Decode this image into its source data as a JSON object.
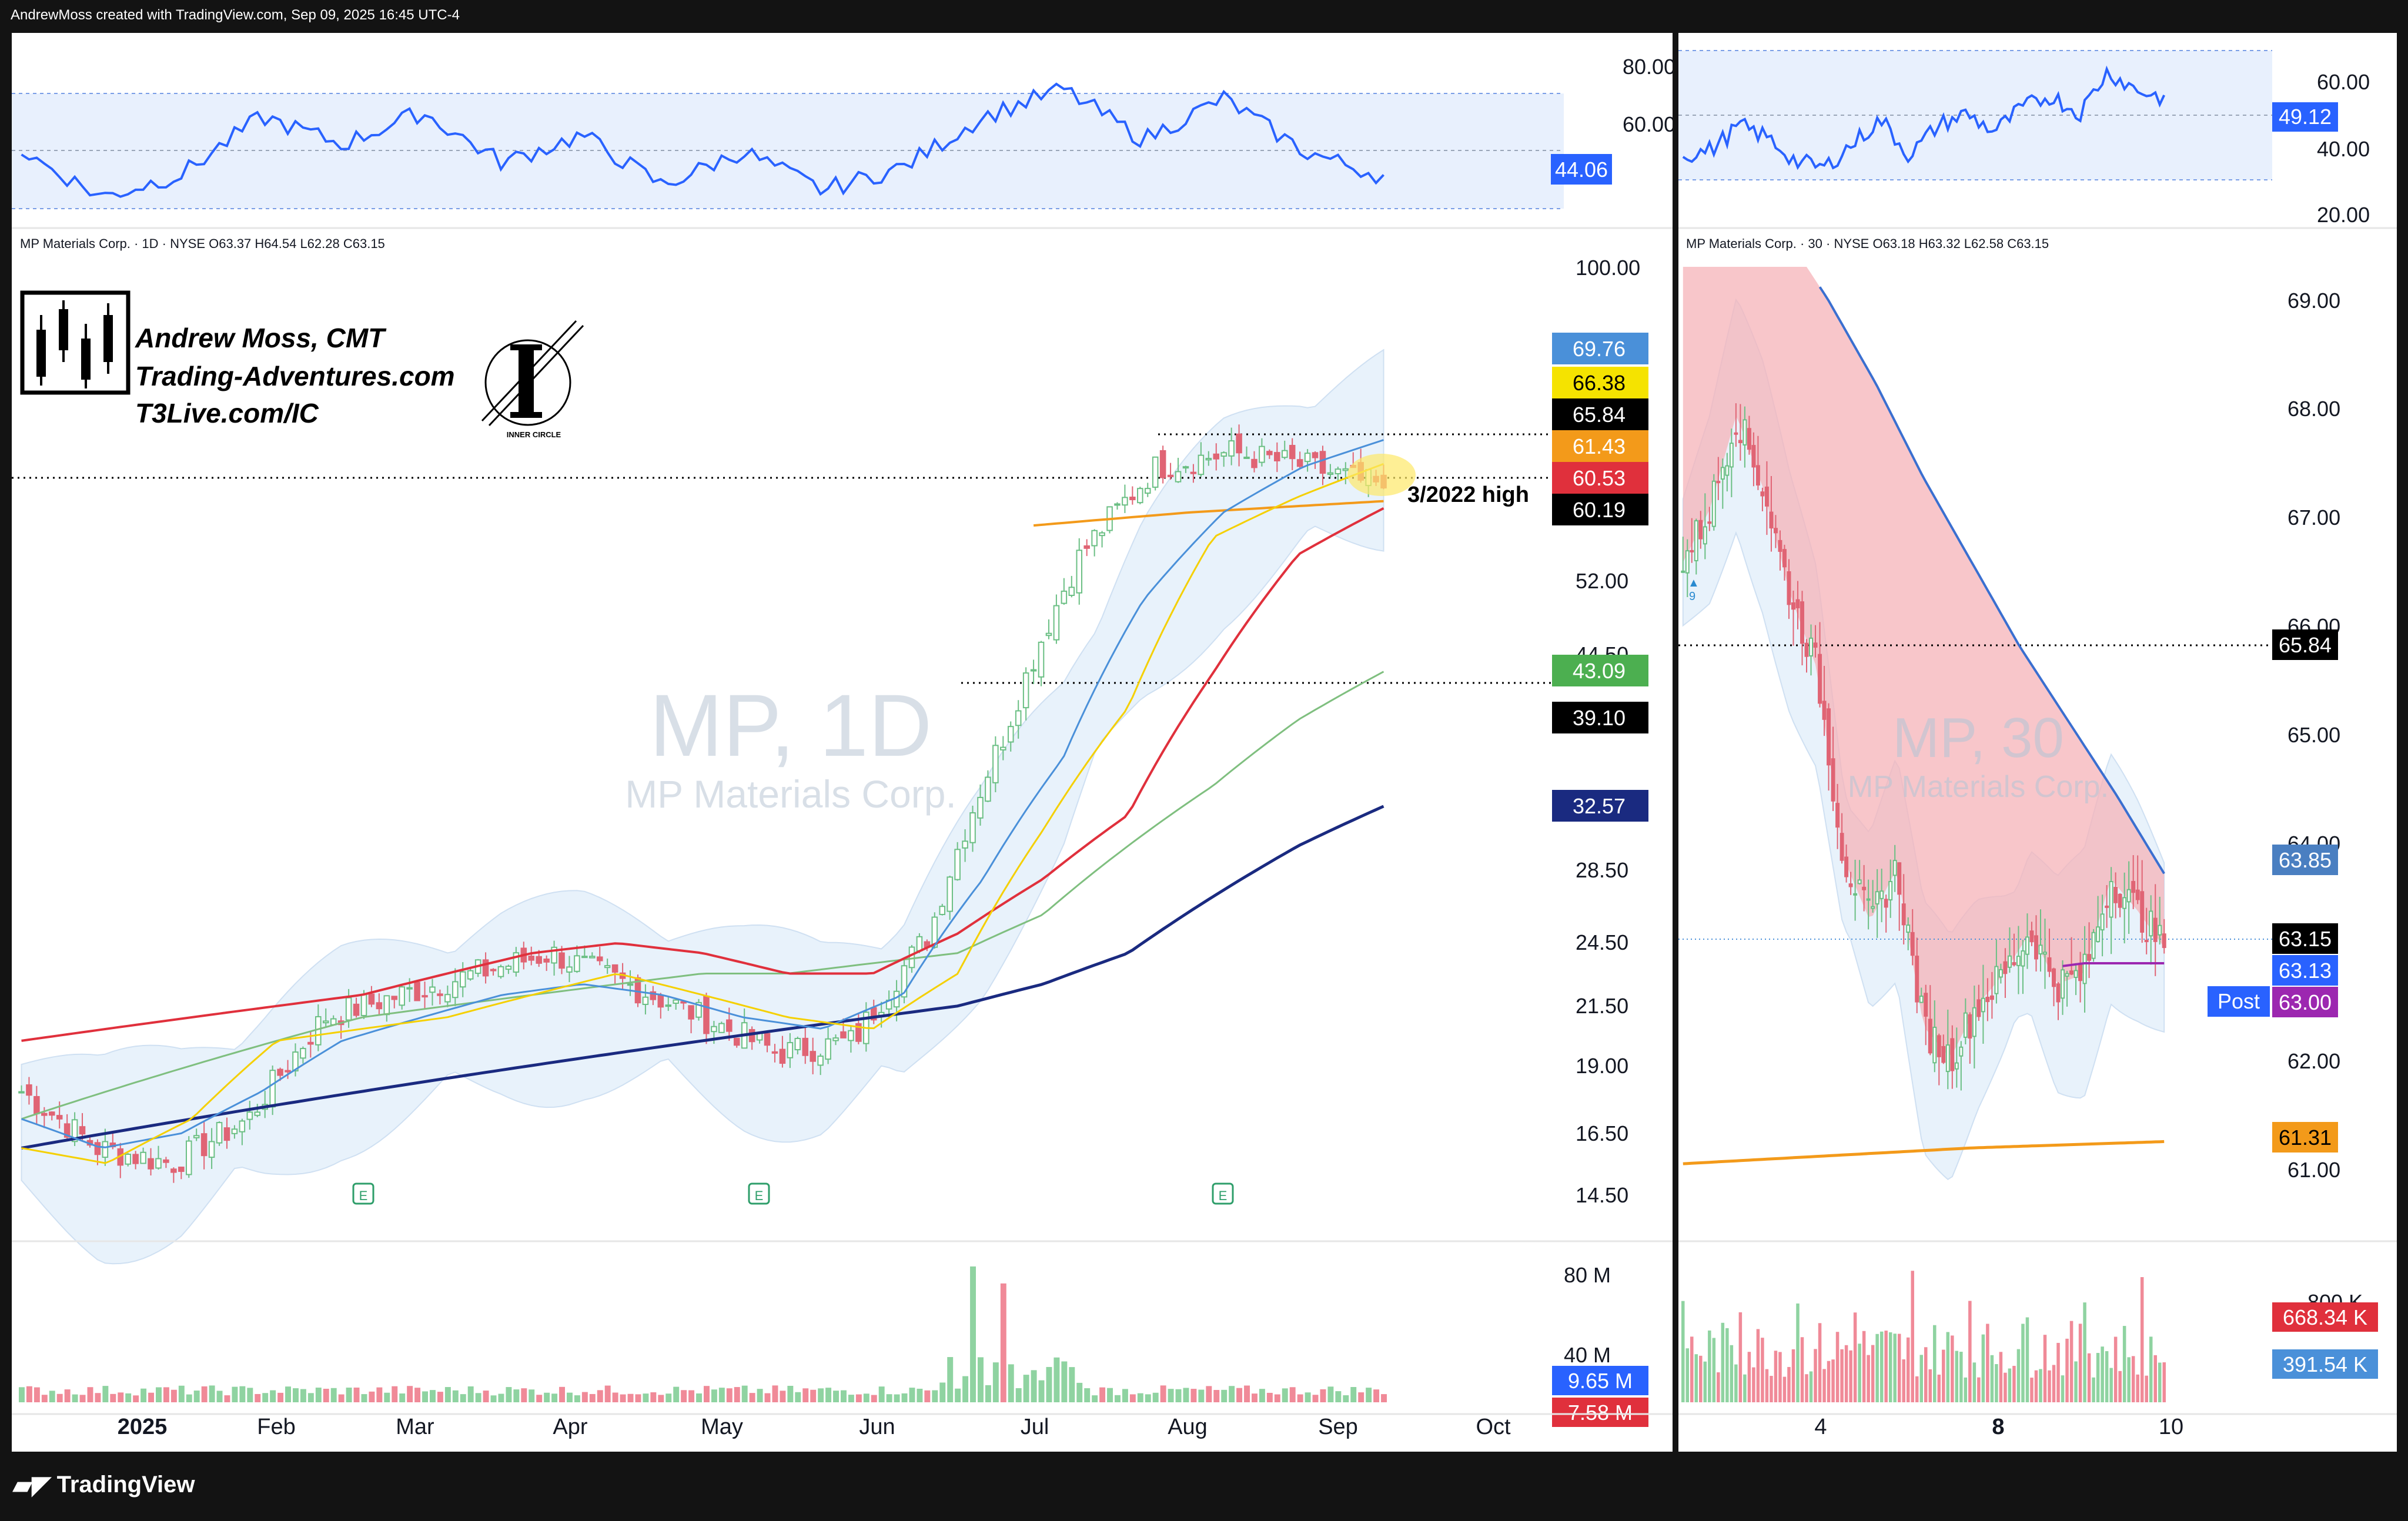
{
  "header": {
    "text": "AndrewMoss created with TradingView.com, Sep 09, 2025 16:45 UTC-4"
  },
  "footer": {
    "brand": "TradingView",
    "logo_icon": "tradingview-logo-icon"
  },
  "branding": {
    "name": "Andrew Moss, CMT",
    "site": "Trading-Adventures.com",
    "site2": "T3Live.com/IC",
    "inner_circle": "INNER CIRCLE",
    "candle_logo_icon": "candlestick-logo-icon",
    "inner_circle_icon": "inner-circle-logo-icon"
  },
  "colors": {
    "rsi_line": "#2962ff",
    "rsi_band": "#e8f0fd",
    "up": "#6bbf84",
    "down": "#e06474",
    "ema8": "#f5d000",
    "ema21": "#4a90d9",
    "sma50": "#e0303c",
    "sma100": "#7fbf7f",
    "sma200": "#1a2a80",
    "ma_orange": "#f39a1a",
    "vwap": "#9c27b0",
    "bollinger": "#e8f2fb",
    "cloud_red": "#f5b3b8",
    "ma30_blue": "#3a6fd0"
  },
  "left": {
    "legend": "MP Materials Corp. · 1D · NYSE  O63.37  H64.54  L62.28  C63.15",
    "watermark": "MP, 1D",
    "watermark_sub": "MP Materials Corp.",
    "annotation": "3/2022 high",
    "earnings_marker": "E",
    "earnings_count": 3,
    "rsi_axis": [
      "80.00",
      "60.00"
    ],
    "rsi_value": "44.06",
    "price_axis": [
      "100.00",
      "52.00",
      "44.50",
      "28.50",
      "24.50",
      "21.50",
      "19.00",
      "16.50",
      "14.50"
    ],
    "price_tags": [
      {
        "value": "69.76",
        "bg": "#4a90d9",
        "fg": "#ffffff"
      },
      {
        "value": "66.38",
        "bg": "#f5e300",
        "fg": "#000000"
      },
      {
        "value": "65.84",
        "bg": "#000000",
        "fg": "#ffffff"
      },
      {
        "value": "61.43",
        "bg": "#f39a1a",
        "fg": "#ffffff"
      },
      {
        "value": "60.53",
        "bg": "#e0303c",
        "fg": "#ffffff"
      },
      {
        "value": "60.19",
        "bg": "#000000",
        "fg": "#ffffff"
      },
      {
        "value": "43.09",
        "bg": "#4caf50",
        "fg": "#ffffff"
      },
      {
        "value": "39.10",
        "bg": "#000000",
        "fg": "#ffffff"
      },
      {
        "value": "32.57",
        "bg": "#1a2a80",
        "fg": "#ffffff"
      }
    ],
    "vol_axis": [
      "80 M",
      "40 M"
    ],
    "vol_tags": [
      {
        "value": "9.65 M",
        "bg": "#2962ff",
        "fg": "#ffffff"
      },
      {
        "value": "7.58 M",
        "bg": "#e0303c",
        "fg": "#ffffff"
      }
    ],
    "x_labels": [
      "2025",
      "Feb",
      "Mar",
      "Apr",
      "May",
      "Jun",
      "Jul",
      "Aug",
      "Sep",
      "Oct"
    ]
  },
  "right": {
    "legend": "MP Materials Corp. · 30 · NYSE  O63.18  H63.32  L62.58  C63.15",
    "watermark": "MP, 30",
    "watermark_sub": "MP Materials Corp.",
    "signal_label": "9",
    "rsi_axis": [
      "60.00",
      "40.00",
      "20.00"
    ],
    "rsi_value": "49.12",
    "price_axis": [
      "69.00",
      "68.00",
      "67.00",
      "66.00",
      "65.00",
      "64.00",
      "62.00",
      "61.00"
    ],
    "price_tags": [
      {
        "value": "65.84",
        "bg": "#000000",
        "fg": "#ffffff"
      },
      {
        "value": "63.85",
        "bg": "#4a7fc1",
        "fg": "#ffffff"
      },
      {
        "value": "63.15",
        "bg": "#000000",
        "fg": "#ffffff"
      },
      {
        "value": "63.13",
        "bg": "#2962ff",
        "fg": "#ffffff"
      },
      {
        "value": "63.00",
        "bg": "#9c27b0",
        "fg": "#ffffff"
      },
      {
        "value": "61.31",
        "bg": "#f39a1a",
        "fg": "#000000"
      }
    ],
    "post_label": "Post",
    "vol_axis": [
      "800 K"
    ],
    "vol_tags": [
      {
        "value": "668.34 K",
        "bg": "#e0303c",
        "fg": "#ffffff"
      },
      {
        "value": "391.54 K",
        "bg": "#4a90d9",
        "fg": "#ffffff"
      }
    ],
    "x_labels": [
      "4",
      "8",
      "10"
    ]
  },
  "chart_data": [
    {
      "type": "candlestick",
      "title": "MP, 1D",
      "symbol": "MP",
      "timeframe": "1D",
      "x_range": [
        "2024-12",
        "2025-10"
      ],
      "price_scale": "log",
      "series": [
        {
          "type": "ema",
          "values_approx": [
            16,
            15.5,
            17,
            20,
            20.5,
            21,
            22,
            23,
            22,
            21,
            20.5,
            23,
            31,
            40,
            57,
            62,
            66.38
          ]
        },
        {
          "type": "sma_red",
          "values_approx": [
            20,
            20.5,
            21,
            21.5,
            22,
            23,
            24,
            24.5,
            24,
            23,
            23,
            25,
            28,
            32,
            43,
            55,
            60.53
          ]
        },
        {
          "type": "sma_green",
          "values_approx": [
            17,
            18,
            19,
            20,
            21,
            21.5,
            22,
            22.5,
            23,
            23,
            23.5,
            24,
            26,
            30,
            34,
            39,
            43.09
          ]
        },
        {
          "type": "sma_navy",
          "values_approx": [
            16,
            16.5,
            17,
            17.5,
            18,
            18.5,
            19,
            19.5,
            20,
            20.5,
            21,
            21.5,
            22.5,
            24,
            27,
            30,
            32.57
          ]
        }
      ],
      "levels": [
        {
          "value": 60.19,
          "style": "dotted"
        },
        {
          "value": 39.1,
          "style": "dotted"
        },
        {
          "value": 65.84,
          "style": "dotted"
        }
      ],
      "last_close": 63.15
    },
    {
      "type": "candlestick",
      "title": "MP, 30",
      "symbol": "MP",
      "timeframe": "30",
      "x_labels": [
        "4",
        "8",
        "10"
      ],
      "price_range": [
        60.8,
        69.6
      ],
      "series": [
        {
          "type": "ma_blue",
          "values_approx": [
            72,
            70.5,
            69,
            67.5,
            66,
            64.6,
            63.85
          ]
        },
        {
          "type": "ma_orange",
          "values_approx": [
            61.1,
            61.15,
            61.2,
            61.25,
            61.28,
            61.31
          ]
        }
      ],
      "levels": [
        {
          "value": 65.84,
          "style": "dotted"
        }
      ],
      "last_close": 63.15
    }
  ]
}
